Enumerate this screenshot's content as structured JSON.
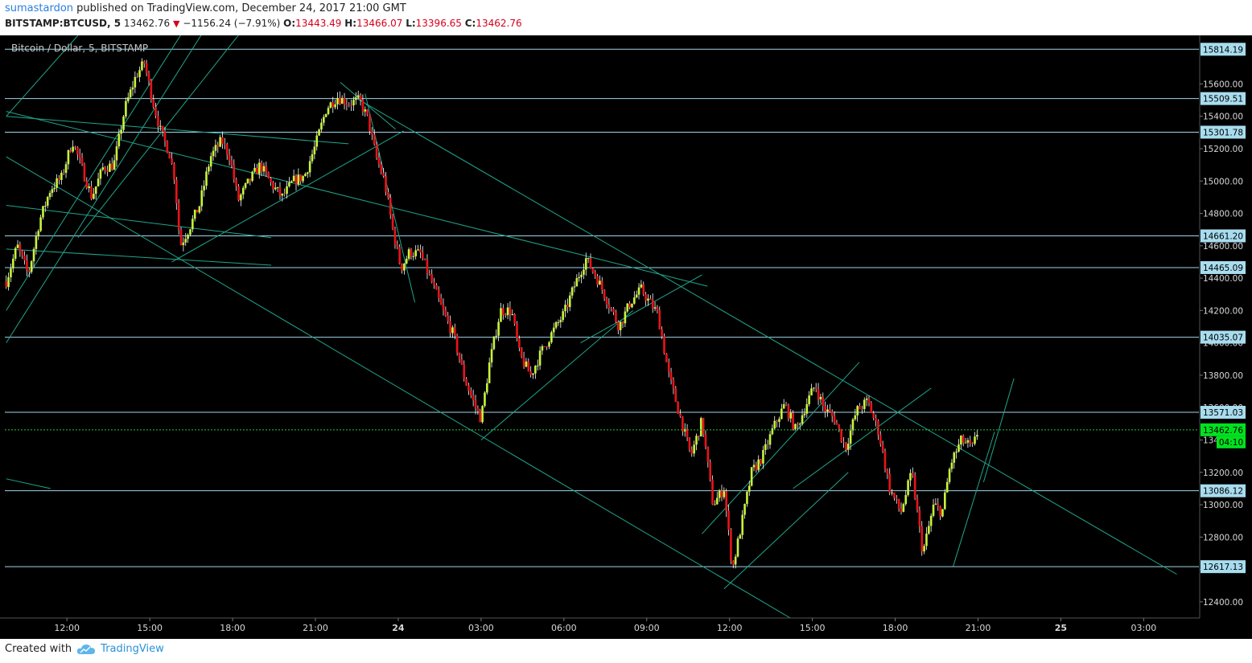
{
  "header": {
    "author": "sumastardon",
    "published_text": " published on TradingView.com, December 24, 2017 21:00 GMT",
    "symbol": "BITSTAMP:BTCUSD, 5",
    "last": "13462.76",
    "change": "−1156.24 (−7.91%)",
    "o_label": "O:",
    "o_value": "13443.49",
    "h_label": "H:",
    "h_value": "13466.07",
    "l_label": "L:",
    "l_value": "13396.65",
    "c_label": "C:",
    "c_value": "13462.76"
  },
  "footer": {
    "created_with": "Created with",
    "brand": "TradingView"
  },
  "colors": {
    "background": "#000000",
    "up": "#c8f53a",
    "down": "#e8141a",
    "wick": "#ffffff",
    "level_line": "#9fd6e8",
    "trend_line": "#20a58c",
    "current_price_line": "#27c93f",
    "price_label_bg": "#a8dcef",
    "current_label_bg": "#00e21f"
  },
  "chart_data": {
    "type": "candlestick",
    "title": "Bitcoin / Dollar, 5, BITSTAMP",
    "ylim": [
      12300,
      15900
    ],
    "y_ticks": [
      12400,
      12600,
      12800,
      13000,
      13200,
      13400,
      13600,
      13800,
      14000,
      14200,
      14400,
      14600,
      14800,
      15000,
      15200,
      15400,
      15600
    ],
    "x_ticks": [
      {
        "label": "12:00",
        "hour": 12
      },
      {
        "label": "15:00",
        "hour": 15
      },
      {
        "label": "18:00",
        "hour": 18
      },
      {
        "label": "21:00",
        "hour": 21
      },
      {
        "label": "24",
        "hour": 24
      },
      {
        "label": "03:00",
        "hour": 27
      },
      {
        "label": "06:00",
        "hour": 30
      },
      {
        "label": "09:00",
        "hour": 33
      },
      {
        "label": "12:00",
        "hour": 36
      },
      {
        "label": "15:00",
        "hour": 39
      },
      {
        "label": "18:00",
        "hour": 42
      },
      {
        "label": "21:00",
        "hour": 45
      },
      {
        "label": "25",
        "hour": 48
      },
      {
        "label": "03:00",
        "hour": 51
      }
    ],
    "x_range_hours": [
      9.75,
      53.0
    ],
    "horizontal_levels": [
      15814.19,
      15509.51,
      15301.78,
      14661.2,
      14465.09,
      14035.07,
      13571.03,
      13086.12,
      12617.13
    ],
    "current_price": 13462.76,
    "countdown": "04:10",
    "path_hours": [
      9.8,
      10.2,
      10.6,
      11.0,
      11.4,
      11.8,
      12.2,
      12.6,
      12.9,
      13.3,
      13.7,
      14.1,
      14.5,
      14.8,
      15.1,
      15.4,
      15.7,
      15.9,
      16.1,
      16.4,
      16.8,
      17.2,
      17.6,
      17.9,
      18.2,
      18.6,
      19.0,
      19.4,
      19.8,
      20.2,
      20.6,
      21.0,
      21.4,
      21.8,
      22.2,
      22.6,
      22.9,
      23.2,
      23.5,
      23.8,
      24.1,
      24.4,
      24.8,
      25.2,
      25.6,
      26.0,
      26.4,
      26.8,
      27.0,
      27.3,
      27.7,
      28.1,
      28.4,
      28.8,
      29.2,
      29.6,
      30.0,
      30.4,
      30.8,
      31.2,
      31.6,
      32.0,
      32.4,
      32.8,
      33.1,
      33.4,
      33.8,
      34.2,
      34.6,
      35.0,
      35.4,
      35.8,
      36.1,
      36.4,
      36.8,
      37.2,
      37.6,
      38.0,
      38.4,
      38.8,
      39.1,
      39.4,
      39.8,
      40.2,
      40.6,
      41.0,
      41.4,
      41.8,
      42.2,
      42.6,
      43.0,
      43.4,
      43.7,
      44.0,
      44.4,
      44.8,
      45.0
    ],
    "path_values": [
      14380,
      14600,
      14420,
      14750,
      14950,
      15020,
      15250,
      15050,
      14900,
      15080,
      15100,
      15450,
      15650,
      15730,
      15500,
      15300,
      15180,
      15020,
      14600,
      14700,
      14850,
      15150,
      15250,
      15150,
      14880,
      15000,
      15100,
      14980,
      14900,
      15000,
      15030,
      15220,
      15450,
      15520,
      15480,
      15500,
      15380,
      15150,
      15000,
      14700,
      14460,
      14560,
      14550,
      14380,
      14200,
      14050,
      13780,
      13600,
      13530,
      13870,
      14200,
      14200,
      13920,
      13800,
      13950,
      14070,
      14180,
      14360,
      14520,
      14400,
      14250,
      14100,
      14250,
      14330,
      14250,
      14180,
      13800,
      13550,
      13300,
      13520,
      13000,
      13100,
      12600,
      12850,
      13200,
      13300,
      13480,
      13620,
      13460,
      13630,
      13740,
      13600,
      13530,
      13350,
      13580,
      13640,
      13450,
      13100,
      12950,
      13200,
      12700,
      13000,
      12950,
      13250,
      13400,
      13350,
      13460
    ]
  }
}
